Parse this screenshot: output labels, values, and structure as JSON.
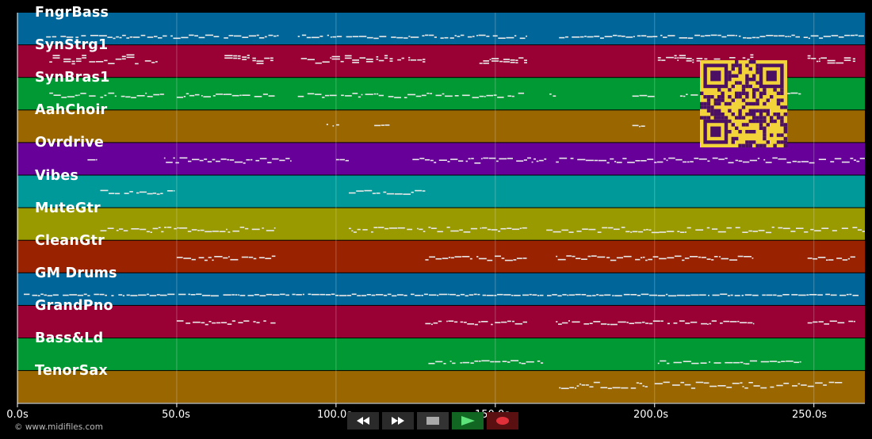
{
  "tracks": [
    {
      "name": "FngrBass",
      "color": "#006699"
    },
    {
      "name": "SynStrg1",
      "color": "#990033"
    },
    {
      "name": "SynBras1",
      "color": "#009933"
    },
    {
      "name": "AahChoir",
      "color": "#996600"
    },
    {
      "name": "Ovrdrive",
      "color": "#660099"
    },
    {
      "name": "Vibes",
      "color": "#009999"
    },
    {
      "name": "MuteGtr",
      "color": "#999900"
    },
    {
      "name": "CleanGtr",
      "color": "#992200"
    },
    {
      "name": "GM Drums",
      "color": "#006699"
    },
    {
      "name": "GrandPno",
      "color": "#990033"
    },
    {
      "name": "Bass&Ld",
      "color": "#009933"
    },
    {
      "name": "TenorSax",
      "color": "#996600"
    }
  ],
  "time_axis": {
    "max_seconds": 266,
    "ticks": [
      "0.0s",
      "50.0s",
      "100.0s",
      "150.0s",
      "200.0s",
      "250.0s"
    ]
  },
  "copyright": "© www.midifiles.com",
  "controls": [
    {
      "name": "rewind-icon",
      "state": "idle"
    },
    {
      "name": "fast-forward-icon",
      "state": "idle"
    },
    {
      "name": "stop-icon",
      "state": "idle"
    },
    {
      "name": "play-icon",
      "state": "active"
    },
    {
      "name": "record-icon",
      "state": "active"
    }
  ],
  "qr_colors": {
    "fg": "#4b0f63",
    "bg": "#f2d43a"
  }
}
